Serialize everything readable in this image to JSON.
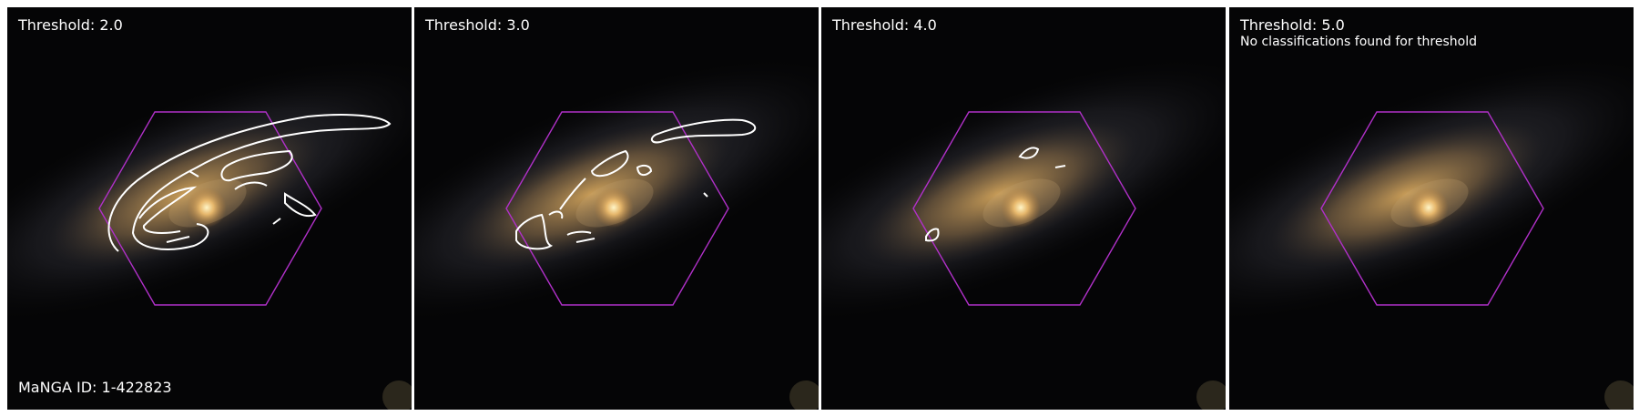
{
  "figure": {
    "panels": [
      {
        "threshold_label": "Threshold: 2.0",
        "note": "",
        "footer": "MaNGA ID: 1-422823"
      },
      {
        "threshold_label": "Threshold: 3.0",
        "note": "",
        "footer": ""
      },
      {
        "threshold_label": "Threshold: 4.0",
        "note": "",
        "footer": ""
      },
      {
        "threshold_label": "Threshold: 5.0",
        "note": "No classifications found for threshold",
        "footer": ""
      }
    ],
    "colors": {
      "background": "#050505",
      "hexagon": "#b030c8",
      "contour": "#ffffff",
      "galaxy_core": "#fff0b0",
      "galaxy_disk": "#c09050"
    }
  }
}
